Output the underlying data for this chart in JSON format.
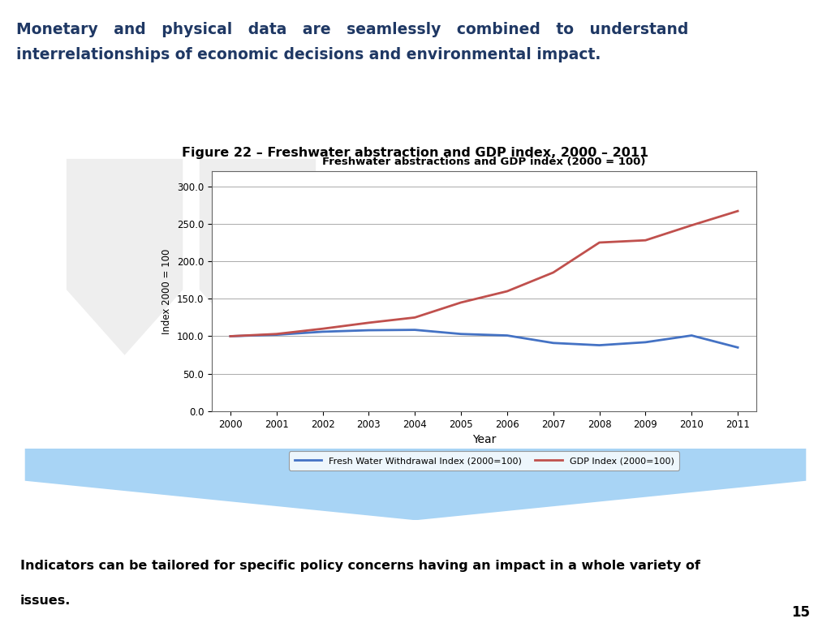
{
  "title_line1": "Monetary   and   physical   data   are   seamlessly   combined   to   understand",
  "title_line2": "interrelationships of economic decisions and environmental impact.",
  "title_color": "#1F3864",
  "figure_title": "Figure 22 – Freshwater abstraction and GDP index, 2000 – 2011",
  "chart_title": "Freshwater abstractions and GDP index (2000 = 100)",
  "xlabel": "Year",
  "ylabel": "Index 2000 = 100",
  "years": [
    2000,
    2001,
    2002,
    2003,
    2004,
    2005,
    2006,
    2007,
    2008,
    2009,
    2010,
    2011
  ],
  "water_index": [
    100.0,
    102.0,
    106.0,
    108.0,
    108.5,
    103.0,
    101.0,
    91.0,
    88.0,
    92.0,
    101.0,
    85.0
  ],
  "gdp_index": [
    100.0,
    103.0,
    110.0,
    118.0,
    125.0,
    145.0,
    160.0,
    185.0,
    225.0,
    228.0,
    248.0,
    267.0
  ],
  "water_color": "#4472C4",
  "gdp_color": "#C0504D",
  "water_label": "Fresh Water Withdrawal Index (2000=100)",
  "gdp_label": "GDP Index (2000=100)",
  "ylim": [
    0.0,
    320.0
  ],
  "yticks": [
    0.0,
    50.0,
    100.0,
    150.0,
    200.0,
    250.0,
    300.0
  ],
  "bottom_text1": "Indicators can be tailored for specific policy concerns having an impact in a whole variety of",
  "bottom_text2": "issues.",
  "bottom_text_color": "#000000",
  "bottom_bg_color": "#FFFF00",
  "bottom_border_color": "#B8860B",
  "page_number": "15",
  "bg_color": "#FFFFFF",
  "arrow_color": "#A8D4F5",
  "watermark_color": "#D0D0D0"
}
